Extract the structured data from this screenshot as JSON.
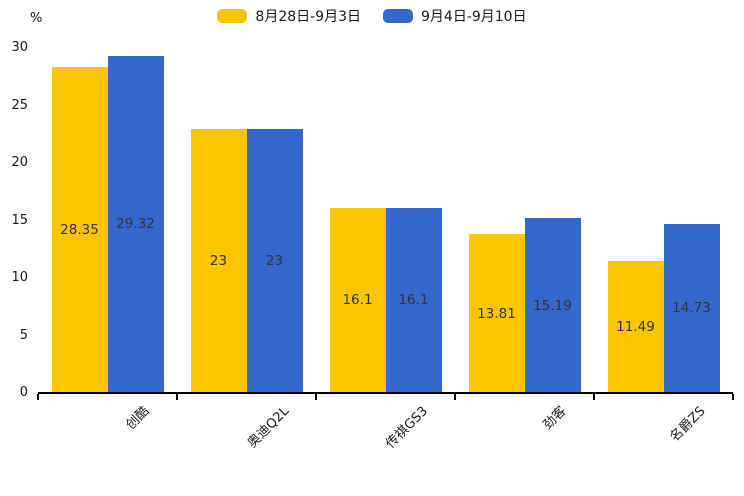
{
  "chart_data": {
    "type": "bar",
    "title": "",
    "categories": [
      "创酷",
      "奥迪Q2L",
      "传祺GS3",
      "劲客",
      "名爵ZS"
    ],
    "series": [
      {
        "name": "8月28日-9月3日",
        "color": "#FCC502",
        "values": [
          28.35,
          23,
          16.1,
          13.81,
          11.49
        ]
      },
      {
        "name": "9月4日-9月10日",
        "color": "#3467CC",
        "values": [
          29.32,
          23,
          16.1,
          15.19,
          14.73
        ]
      }
    ],
    "value_labels": [
      [
        "28.35",
        "23",
        "16.1",
        "13.81",
        "11.49"
      ],
      [
        "29.32",
        "23",
        "16.1",
        "15.19",
        "14.73"
      ]
    ],
    "xlabel": "",
    "ylabel": "%",
    "ylim": [
      0,
      30
    ],
    "y_ticks": [
      "0",
      "5",
      "10",
      "15",
      "20",
      "25",
      "30"
    ],
    "grid": false,
    "legend_position": "top",
    "bar_label_color": "#333333",
    "axis_color": "#000000"
  }
}
